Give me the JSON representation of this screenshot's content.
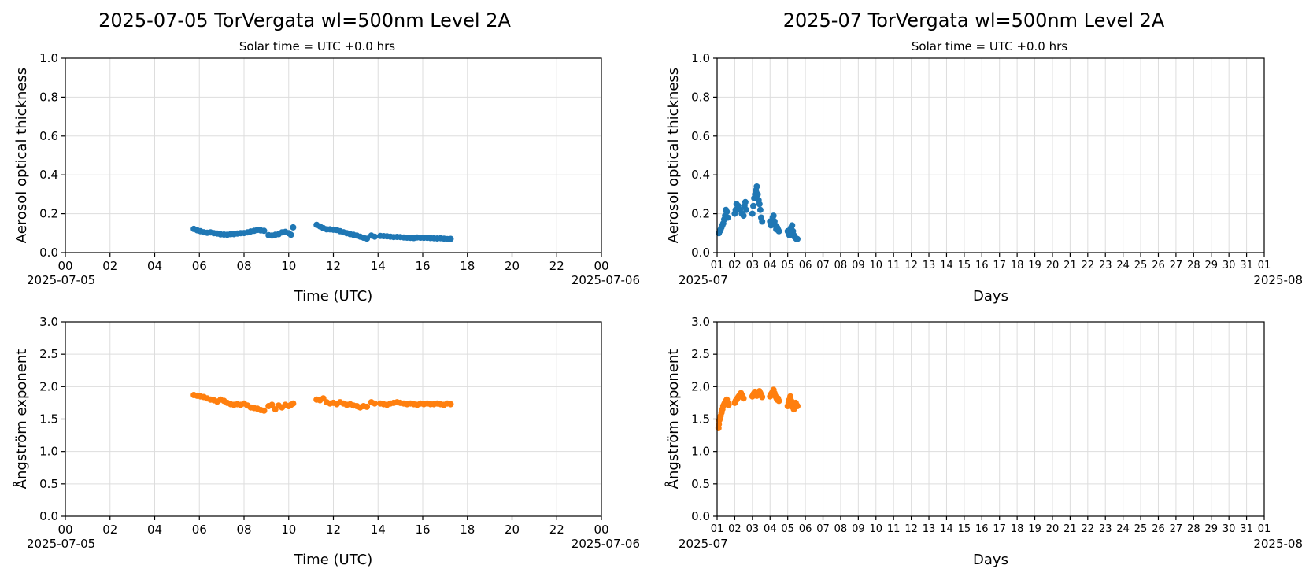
{
  "colors": {
    "aod": "#1f77b4",
    "angstrom": "#ff7f0e",
    "grid": "#dddddd"
  },
  "columns": [
    {
      "title": "2025-07-05  TorVergata  wl=500nm  Level 2A",
      "subtitle": "Solar time = UTC +0.0 hrs"
    },
    {
      "title": "2025-07  TorVergata  wl=500nm  Level 2A",
      "subtitle": "Solar time = UTC +0.0 hrs"
    }
  ],
  "chart_data": [
    {
      "type": "scatter",
      "name": "daily-aod",
      "ylabel": "Aerosol optical thickness",
      "xlabel": "Time (UTC)",
      "xlim": [
        0,
        24
      ],
      "ylim": [
        0,
        1.0
      ],
      "xticks": [
        "00",
        "02",
        "04",
        "06",
        "08",
        "10",
        "12",
        "14",
        "16",
        "18",
        "20",
        "22",
        "00"
      ],
      "xtick_start": "2025-07-05",
      "xtick_end": "2025-07-06",
      "yticks": [
        "0.0",
        "0.2",
        "0.4",
        "0.6",
        "0.8",
        "1.0"
      ],
      "grid": true,
      "x_unit": "hours UTC",
      "points": [
        [
          5.75,
          0.122
        ],
        [
          5.9,
          0.115
        ],
        [
          6.05,
          0.11
        ],
        [
          6.2,
          0.105
        ],
        [
          6.35,
          0.102
        ],
        [
          6.5,
          0.104
        ],
        [
          6.65,
          0.1
        ],
        [
          6.8,
          0.098
        ],
        [
          6.95,
          0.094
        ],
        [
          7.1,
          0.093
        ],
        [
          7.25,
          0.092
        ],
        [
          7.4,
          0.095
        ],
        [
          7.55,
          0.095
        ],
        [
          7.7,
          0.098
        ],
        [
          7.85,
          0.1
        ],
        [
          8.0,
          0.101
        ],
        [
          8.15,
          0.104
        ],
        [
          8.3,
          0.109
        ],
        [
          8.45,
          0.112
        ],
        [
          8.6,
          0.117
        ],
        [
          8.75,
          0.114
        ],
        [
          8.9,
          0.112
        ],
        [
          9.1,
          0.09
        ],
        [
          9.25,
          0.088
        ],
        [
          9.4,
          0.092
        ],
        [
          9.55,
          0.095
        ],
        [
          9.7,
          0.104
        ],
        [
          9.85,
          0.107
        ],
        [
          10.0,
          0.1
        ],
        [
          10.1,
          0.092
        ],
        [
          10.2,
          0.13
        ],
        [
          11.25,
          0.143
        ],
        [
          11.4,
          0.135
        ],
        [
          11.55,
          0.126
        ],
        [
          11.7,
          0.12
        ],
        [
          11.85,
          0.12
        ],
        [
          12.0,
          0.118
        ],
        [
          12.15,
          0.116
        ],
        [
          12.3,
          0.11
        ],
        [
          12.45,
          0.105
        ],
        [
          12.6,
          0.1
        ],
        [
          12.75,
          0.095
        ],
        [
          12.9,
          0.092
        ],
        [
          13.05,
          0.088
        ],
        [
          13.2,
          0.082
        ],
        [
          13.35,
          0.077
        ],
        [
          13.5,
          0.072
        ],
        [
          13.7,
          0.088
        ],
        [
          13.85,
          0.082
        ],
        [
          14.1,
          0.086
        ],
        [
          14.25,
          0.085
        ],
        [
          14.4,
          0.084
        ],
        [
          14.55,
          0.082
        ],
        [
          14.7,
          0.08
        ],
        [
          14.85,
          0.081
        ],
        [
          15.0,
          0.08
        ],
        [
          15.15,
          0.078
        ],
        [
          15.3,
          0.077
        ],
        [
          15.45,
          0.076
        ],
        [
          15.6,
          0.075
        ],
        [
          15.75,
          0.078
        ],
        [
          15.9,
          0.077
        ],
        [
          16.05,
          0.076
        ],
        [
          16.2,
          0.076
        ],
        [
          16.35,
          0.075
        ],
        [
          16.5,
          0.074
        ],
        [
          16.65,
          0.073
        ],
        [
          16.8,
          0.074
        ],
        [
          16.95,
          0.072
        ],
        [
          17.1,
          0.07
        ],
        [
          17.25,
          0.071
        ]
      ]
    },
    {
      "type": "scatter",
      "name": "monthly-aod",
      "ylabel": "Aerosol optical thickness",
      "xlabel": "Days",
      "xlim": [
        1,
        32
      ],
      "ylim": [
        0,
        1.0
      ],
      "xticks": [
        "01",
        "02",
        "03",
        "04",
        "05",
        "06",
        "07",
        "08",
        "09",
        "10",
        "11",
        "12",
        "13",
        "14",
        "15",
        "16",
        "17",
        "18",
        "19",
        "20",
        "21",
        "22",
        "23",
        "24",
        "25",
        "26",
        "27",
        "28",
        "29",
        "30",
        "31",
        "01"
      ],
      "xtick_start": "2025-07",
      "xtick_end": "2025-08",
      "yticks": [
        "0.0",
        "0.2",
        "0.4",
        "0.6",
        "0.8",
        "1.0"
      ],
      "grid": true,
      "x_unit": "day of month",
      "points": [
        [
          1.1,
          0.1
        ],
        [
          1.15,
          0.11
        ],
        [
          1.2,
          0.12
        ],
        [
          1.25,
          0.13
        ],
        [
          1.3,
          0.14
        ],
        [
          1.35,
          0.15
        ],
        [
          1.4,
          0.17
        ],
        [
          1.45,
          0.19
        ],
        [
          1.5,
          0.22
        ],
        [
          1.55,
          0.21
        ],
        [
          1.6,
          0.18
        ],
        [
          2.0,
          0.2
        ],
        [
          2.05,
          0.22
        ],
        [
          2.1,
          0.25
        ],
        [
          2.2,
          0.24
        ],
        [
          2.3,
          0.22
        ],
        [
          2.4,
          0.2
        ],
        [
          2.5,
          0.19
        ],
        [
          2.55,
          0.24
        ],
        [
          2.6,
          0.26
        ],
        [
          2.65,
          0.22
        ],
        [
          3.0,
          0.2
        ],
        [
          3.05,
          0.24
        ],
        [
          3.1,
          0.28
        ],
        [
          3.15,
          0.3
        ],
        [
          3.2,
          0.32
        ],
        [
          3.25,
          0.34
        ],
        [
          3.3,
          0.3
        ],
        [
          3.35,
          0.27
        ],
        [
          3.4,
          0.25
        ],
        [
          3.45,
          0.22
        ],
        [
          3.5,
          0.18
        ],
        [
          3.55,
          0.16
        ],
        [
          4.0,
          0.16
        ],
        [
          4.05,
          0.14
        ],
        [
          4.1,
          0.15
        ],
        [
          4.15,
          0.18
        ],
        [
          4.2,
          0.19
        ],
        [
          4.25,
          0.16
        ],
        [
          4.3,
          0.14
        ],
        [
          4.35,
          0.12
        ],
        [
          4.4,
          0.13
        ],
        [
          4.45,
          0.12
        ],
        [
          4.5,
          0.11
        ],
        [
          5.0,
          0.11
        ],
        [
          5.05,
          0.1
        ],
        [
          5.1,
          0.09
        ],
        [
          5.15,
          0.12
        ],
        [
          5.2,
          0.13
        ],
        [
          5.25,
          0.14
        ],
        [
          5.3,
          0.11
        ],
        [
          5.35,
          0.09
        ],
        [
          5.4,
          0.08
        ],
        [
          5.45,
          0.075
        ],
        [
          5.5,
          0.07
        ],
        [
          5.55,
          0.07
        ]
      ]
    },
    {
      "type": "scatter",
      "name": "daily-angstrom",
      "ylabel": "Ångström exponent",
      "xlabel": "Time (UTC)",
      "xlim": [
        0,
        24
      ],
      "ylim": [
        0,
        3.0
      ],
      "xticks": [
        "00",
        "02",
        "04",
        "06",
        "08",
        "10",
        "12",
        "14",
        "16",
        "18",
        "20",
        "22",
        "00"
      ],
      "xtick_start": "2025-07-05",
      "xtick_end": "2025-07-06",
      "yticks": [
        "0.0",
        "0.5",
        "1.0",
        "1.5",
        "2.0",
        "2.5",
        "3.0"
      ],
      "grid": true,
      "x_unit": "hours UTC",
      "points": [
        [
          5.75,
          1.87
        ],
        [
          5.9,
          1.86
        ],
        [
          6.05,
          1.85
        ],
        [
          6.2,
          1.84
        ],
        [
          6.35,
          1.82
        ],
        [
          6.5,
          1.8
        ],
        [
          6.65,
          1.79
        ],
        [
          6.8,
          1.77
        ],
        [
          6.95,
          1.8
        ],
        [
          7.1,
          1.78
        ],
        [
          7.25,
          1.75
        ],
        [
          7.4,
          1.73
        ],
        [
          7.55,
          1.72
        ],
        [
          7.7,
          1.73
        ],
        [
          7.85,
          1.72
        ],
        [
          8.0,
          1.74
        ],
        [
          8.15,
          1.71
        ],
        [
          8.3,
          1.68
        ],
        [
          8.45,
          1.67
        ],
        [
          8.6,
          1.66
        ],
        [
          8.75,
          1.64
        ],
        [
          8.9,
          1.63
        ],
        [
          9.1,
          1.7
        ],
        [
          9.25,
          1.72
        ],
        [
          9.4,
          1.65
        ],
        [
          9.55,
          1.71
        ],
        [
          9.7,
          1.68
        ],
        [
          9.85,
          1.72
        ],
        [
          10.0,
          1.7
        ],
        [
          10.1,
          1.72
        ],
        [
          10.2,
          1.74
        ],
        [
          11.25,
          1.8
        ],
        [
          11.4,
          1.79
        ],
        [
          11.55,
          1.82
        ],
        [
          11.7,
          1.76
        ],
        [
          11.85,
          1.74
        ],
        [
          12.0,
          1.75
        ],
        [
          12.15,
          1.73
        ],
        [
          12.3,
          1.76
        ],
        [
          12.45,
          1.74
        ],
        [
          12.6,
          1.72
        ],
        [
          12.75,
          1.73
        ],
        [
          12.9,
          1.71
        ],
        [
          13.05,
          1.7
        ],
        [
          13.2,
          1.68
        ],
        [
          13.35,
          1.7
        ],
        [
          13.5,
          1.69
        ],
        [
          13.7,
          1.76
        ],
        [
          13.85,
          1.74
        ],
        [
          14.1,
          1.74
        ],
        [
          14.25,
          1.73
        ],
        [
          14.4,
          1.72
        ],
        [
          14.55,
          1.74
        ],
        [
          14.7,
          1.75
        ],
        [
          14.85,
          1.76
        ],
        [
          15.0,
          1.75
        ],
        [
          15.15,
          1.74
        ],
        [
          15.3,
          1.73
        ],
        [
          15.45,
          1.74
        ],
        [
          15.6,
          1.73
        ],
        [
          15.75,
          1.72
        ],
        [
          15.9,
          1.74
        ],
        [
          16.05,
          1.73
        ],
        [
          16.2,
          1.74
        ],
        [
          16.35,
          1.73
        ],
        [
          16.5,
          1.73
        ],
        [
          16.65,
          1.74
        ],
        [
          16.8,
          1.73
        ],
        [
          16.95,
          1.72
        ],
        [
          17.1,
          1.74
        ],
        [
          17.25,
          1.73
        ]
      ]
    },
    {
      "type": "scatter",
      "name": "monthly-angstrom",
      "ylabel": "Ångström exponent",
      "xlabel": "Days",
      "xlim": [
        1,
        32
      ],
      "ylim": [
        0,
        3.0
      ],
      "xticks": [
        "01",
        "02",
        "03",
        "04",
        "05",
        "06",
        "07",
        "08",
        "09",
        "10",
        "11",
        "12",
        "13",
        "14",
        "15",
        "16",
        "17",
        "18",
        "19",
        "20",
        "21",
        "22",
        "23",
        "24",
        "25",
        "26",
        "27",
        "28",
        "29",
        "30",
        "31",
        "01"
      ],
      "xtick_start": "2025-07",
      "xtick_end": "2025-08",
      "yticks": [
        "0.0",
        "0.5",
        "1.0",
        "1.5",
        "2.0",
        "2.5",
        "3.0"
      ],
      "grid": true,
      "x_unit": "day of month",
      "points": [
        [
          1.08,
          1.36
        ],
        [
          1.1,
          1.42
        ],
        [
          1.12,
          1.48
        ],
        [
          1.15,
          1.5
        ],
        [
          1.2,
          1.55
        ],
        [
          1.25,
          1.6
        ],
        [
          1.3,
          1.65
        ],
        [
          1.35,
          1.7
        ],
        [
          1.4,
          1.73
        ],
        [
          1.45,
          1.76
        ],
        [
          1.5,
          1.78
        ],
        [
          1.55,
          1.8
        ],
        [
          1.6,
          1.75
        ],
        [
          1.65,
          1.72
        ],
        [
          2.0,
          1.75
        ],
        [
          2.05,
          1.78
        ],
        [
          2.1,
          1.8
        ],
        [
          2.15,
          1.82
        ],
        [
          2.2,
          1.84
        ],
        [
          2.25,
          1.86
        ],
        [
          2.3,
          1.88
        ],
        [
          2.35,
          1.9
        ],
        [
          2.4,
          1.87
        ],
        [
          2.45,
          1.84
        ],
        [
          2.5,
          1.82
        ],
        [
          3.0,
          1.85
        ],
        [
          3.05,
          1.88
        ],
        [
          3.1,
          1.9
        ],
        [
          3.15,
          1.92
        ],
        [
          3.2,
          1.89
        ],
        [
          3.25,
          1.86
        ],
        [
          3.3,
          1.88
        ],
        [
          3.35,
          1.91
        ],
        [
          3.4,
          1.93
        ],
        [
          3.45,
          1.9
        ],
        [
          3.5,
          1.87
        ],
        [
          3.55,
          1.84
        ],
        [
          4.0,
          1.85
        ],
        [
          4.05,
          1.88
        ],
        [
          4.1,
          1.9
        ],
        [
          4.15,
          1.92
        ],
        [
          4.2,
          1.95
        ],
        [
          4.25,
          1.9
        ],
        [
          4.3,
          1.86
        ],
        [
          4.35,
          1.83
        ],
        [
          4.4,
          1.8
        ],
        [
          4.45,
          1.82
        ],
        [
          4.5,
          1.78
        ],
        [
          5.0,
          1.7
        ],
        [
          5.05,
          1.75
        ],
        [
          5.1,
          1.8
        ],
        [
          5.15,
          1.85
        ],
        [
          5.2,
          1.78
        ],
        [
          5.25,
          1.72
        ],
        [
          5.3,
          1.68
        ],
        [
          5.35,
          1.65
        ],
        [
          5.4,
          1.7
        ],
        [
          5.45,
          1.75
        ],
        [
          5.5,
          1.72
        ],
        [
          5.55,
          1.7
        ]
      ]
    }
  ]
}
